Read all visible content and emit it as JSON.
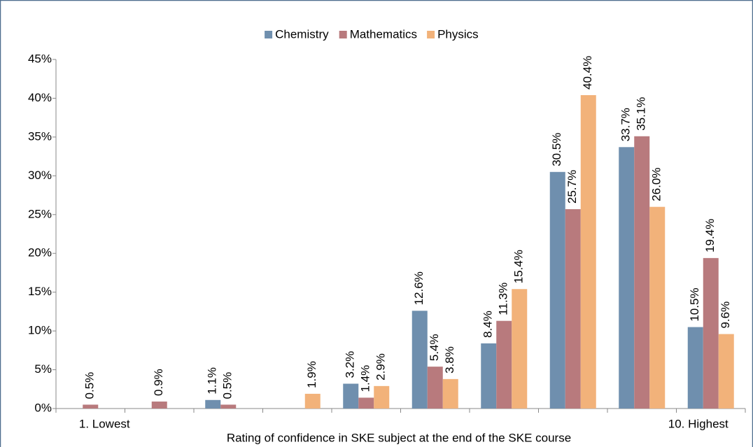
{
  "chart_data": {
    "type": "bar",
    "x_label": "Rating of confidence in SKE subject at the end of the SKE course",
    "categories": [
      "1. Lowest",
      null,
      null,
      null,
      null,
      null,
      null,
      null,
      null,
      "10. Highest"
    ],
    "series": [
      {
        "name": "Chemistry",
        "color": "#6f8fae",
        "values": [
          null,
          null,
          1.1,
          null,
          3.2,
          12.6,
          8.4,
          30.5,
          33.7,
          10.5
        ],
        "value_labels": [
          null,
          null,
          "1.1%",
          null,
          "3.2%",
          "12.6%",
          "8.4%",
          "30.5%",
          "33.7%",
          "10.5%"
        ]
      },
      {
        "name": "Mathematics",
        "color": "#b87a7d",
        "values": [
          0.5,
          0.9,
          0.5,
          null,
          1.4,
          5.4,
          11.3,
          25.7,
          35.1,
          19.4
        ],
        "value_labels": [
          "0.5%",
          "0.9%",
          "0.5%",
          null,
          "1.4%",
          "5.4%",
          "11.3%",
          "25.7%",
          "35.1%",
          "19.4%"
        ]
      },
      {
        "name": "Physics",
        "color": "#f2b27a",
        "values": [
          null,
          null,
          null,
          1.9,
          2.9,
          3.8,
          15.4,
          40.4,
          26,
          9.6
        ],
        "value_labels": [
          null,
          null,
          null,
          "1.9%",
          "2.9%",
          "3.8%",
          "15.4%",
          "40.4%",
          "26.0%",
          "9.6%"
        ]
      }
    ],
    "ylim": [
      0,
      45
    ],
    "yticks": [
      {
        "value": 0,
        "label": "0%"
      },
      {
        "value": 5,
        "label": "5%"
      },
      {
        "value": 10,
        "label": "10%"
      },
      {
        "value": 15,
        "label": "15%"
      },
      {
        "value": 20,
        "label": "20%"
      },
      {
        "value": 25,
        "label": "25%"
      },
      {
        "value": 30,
        "label": "30%"
      },
      {
        "value": 35,
        "label": "35%"
      },
      {
        "value": 40,
        "label": "40%"
      },
      {
        "value": 45,
        "label": "45%"
      }
    ],
    "legend": "top"
  }
}
